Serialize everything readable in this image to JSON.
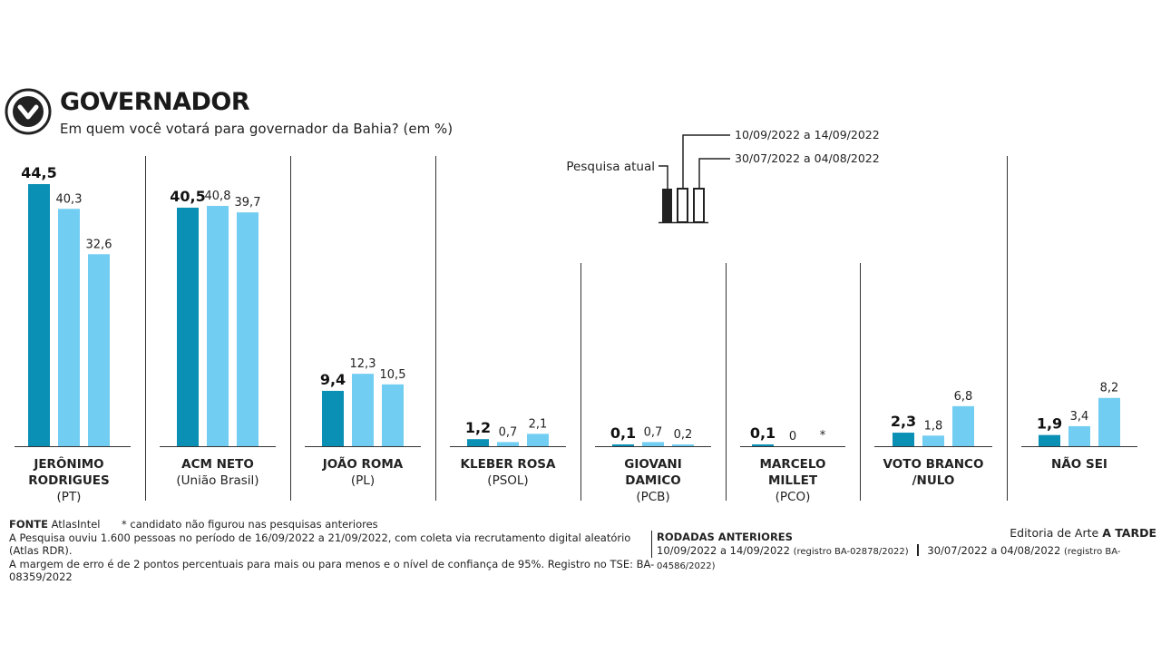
{
  "header": {
    "title": "GOVERNADOR",
    "subtitle": "Em quem você votará para governador da Bahia? (em %)"
  },
  "legend": {
    "current": "Pesquisa atual",
    "round2": "10/09/2022 a 14/09/2022",
    "round3": "30/07/2022 a 04/08/2022"
  },
  "colors": {
    "current": "#0a8fb5",
    "previous": "#72cdf2",
    "text": "#1a1a1a"
  },
  "chart_data": {
    "type": "bar",
    "title": "GOVERNADOR",
    "subtitle": "Em quem você votará para governador da Bahia? (em %)",
    "ylim": [
      0,
      44.5
    ],
    "grid": false,
    "legend_position": "top-center",
    "categories": [
      {
        "name": "JERÔNIMO RODRIGUES",
        "lines": [
          "JERÔNIMO",
          "RODRIGUES"
        ],
        "party": "(PT)"
      },
      {
        "name": "ACM NETO",
        "lines": [
          "ACM NETO"
        ],
        "party": "(União Brasil)"
      },
      {
        "name": "JOÃO ROMA",
        "lines": [
          "JOÃO ROMA"
        ],
        "party": "(PL)"
      },
      {
        "name": "KLEBER ROSA",
        "lines": [
          "KLEBER ROSA"
        ],
        "party": "(PSOL)"
      },
      {
        "name": "GIOVANI DAMICO",
        "lines": [
          "GIOVANI",
          "DAMICO"
        ],
        "party": "(PCB)"
      },
      {
        "name": "MARCELO MILLET",
        "lines": [
          "MARCELO",
          "MILLET"
        ],
        "party": "(PCO)"
      },
      {
        "name": "VOTO BRANCO /NULO",
        "lines": [
          "VOTO BRANCO",
          "/NULO"
        ],
        "party": ""
      },
      {
        "name": "NÃO SEI",
        "lines": [
          "NÃO SEI"
        ],
        "party": ""
      }
    ],
    "series": [
      {
        "name": "Pesquisa atual",
        "values": [
          44.5,
          40.5,
          9.4,
          1.2,
          0.1,
          0.1,
          2.3,
          1.9
        ],
        "labels": [
          "44,5",
          "40,5",
          "9,4",
          "1,2",
          "0,1",
          "0,1",
          "2,3",
          "1,9"
        ]
      },
      {
        "name": "10/09/2022 a 14/09/2022",
        "values": [
          40.3,
          40.8,
          12.3,
          0.7,
          0.7,
          0,
          1.8,
          3.4
        ],
        "labels": [
          "40,3",
          "40,8",
          "12,3",
          "0,7",
          "0,7",
          "0",
          "1,8",
          "3,4"
        ]
      },
      {
        "name": "30/07/2022 a 04/08/2022",
        "values": [
          32.6,
          39.7,
          10.5,
          2.1,
          0.2,
          null,
          6.8,
          8.2
        ],
        "labels": [
          "32,6",
          "39,7",
          "10,5",
          "2,1",
          "0,2",
          "*",
          "6,8",
          "8,2"
        ]
      }
    ]
  },
  "footer": {
    "fonte_label": "FONTE",
    "fonte_value": "AtlasIntel",
    "nota": "* candidato não figurou nas pesquisas anteriores",
    "line2": "A Pesquisa ouviu 1.600 pessoas no período de 16/09/2022 a 21/09/2022, com coleta via recrutamento digital aleatório (Atlas RDR).",
    "line3": "A margem de erro é de 2 pontos percentuais para mais ou para menos e o nível de confiança de 95%. Registro no TSE: BA-08359/2022",
    "rodadas_label": "RODADAS ANTERIORES",
    "rodada1": "10/09/2022 a 14/09/2022",
    "rodada1_reg": "(registro BA-02878/2022)",
    "rodada2": "30/07/2022 a 04/08/2022",
    "rodada2_reg": "(registro BA-04586/2022)",
    "editoria_prefix": "Editoria de Arte",
    "editoria_name": "A TARDE"
  }
}
